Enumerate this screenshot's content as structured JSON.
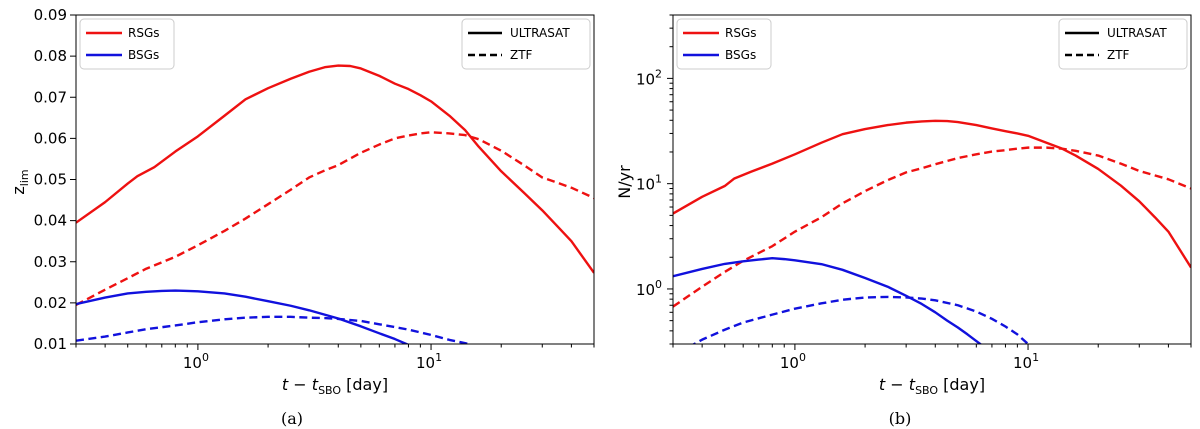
{
  "chart_data": [
    {
      "type": "line",
      "caption": "(a)",
      "xlabel": "t − t_SBO [day]",
      "xlabel_parts": {
        "t": "t",
        "sub_t": "t",
        "sub": "SBO",
        "unit": "[day]"
      },
      "ylabel": "z_lim",
      "ylabel_parts": {
        "base": "z",
        "sub": "lim"
      },
      "xscale": "log",
      "yscale": "linear",
      "xlim": [
        0.3,
        50
      ],
      "ylim": [
        0.01,
        0.09
      ],
      "xticks": [
        {
          "value": 1,
          "label": "10",
          "exp": "0"
        },
        {
          "value": 10,
          "label": "10",
          "exp": "1"
        }
      ],
      "yticks": [
        {
          "value": 0.01,
          "label": "0.01"
        },
        {
          "value": 0.02,
          "label": "0.02"
        },
        {
          "value": 0.03,
          "label": "0.03"
        },
        {
          "value": 0.04,
          "label": "0.04"
        },
        {
          "value": 0.05,
          "label": "0.05"
        },
        {
          "value": 0.06,
          "label": "0.06"
        },
        {
          "value": 0.07,
          "label": "0.07"
        },
        {
          "value": 0.08,
          "label": "0.08"
        },
        {
          "value": 0.09,
          "label": "0.09"
        }
      ],
      "legend_color": {
        "position": "top-left",
        "entries": [
          {
            "label": "RSGs",
            "color": "#ee1111"
          },
          {
            "label": "BSGs",
            "color": "#1111dd"
          }
        ]
      },
      "legend_style": {
        "position": "top-right",
        "entries": [
          {
            "label": "ULTRASAT",
            "dash": "solid"
          },
          {
            "label": "ZTF",
            "dash": "dashed"
          }
        ]
      },
      "series": [
        {
          "name": "RSGs ULTRASAT",
          "color": "#ee1111",
          "dash": "solid",
          "x": [
            0.3,
            0.4,
            0.5,
            0.55,
            0.65,
            0.8,
            1.0,
            1.3,
            1.6,
            2.0,
            2.5,
            3.0,
            3.5,
            4.0,
            4.5,
            5.0,
            6.0,
            7.0,
            8.0,
            9.0,
            10.0,
            12.0,
            14.0,
            16.0,
            20.0,
            25.0,
            30.0,
            35.0,
            40.0,
            50.0
          ],
          "y": [
            0.0395,
            0.0445,
            0.049,
            0.0508,
            0.053,
            0.0568,
            0.0605,
            0.0655,
            0.0695,
            0.0722,
            0.0745,
            0.0762,
            0.0773,
            0.0777,
            0.0776,
            0.077,
            0.0752,
            0.0733,
            0.072,
            0.0705,
            0.069,
            0.0655,
            0.062,
            0.058,
            0.052,
            0.0468,
            0.0425,
            0.0385,
            0.035,
            0.0273
          ]
        },
        {
          "name": "RSGs ZTF",
          "color": "#ee1111",
          "dash": "dashed",
          "x": [
            0.3,
            0.4,
            0.5,
            0.6,
            0.8,
            1.0,
            1.3,
            1.6,
            2.0,
            2.5,
            3.0,
            3.5,
            4.0,
            5.0,
            6.0,
            7.0,
            8.0,
            9.0,
            10.0,
            12.0,
            14.0,
            16.0,
            20.0,
            25.0,
            30.0,
            40.0,
            50.0
          ],
          "y": [
            0.0195,
            0.0232,
            0.026,
            0.0283,
            0.0312,
            0.034,
            0.0375,
            0.0405,
            0.044,
            0.0475,
            0.0505,
            0.0522,
            0.0535,
            0.0565,
            0.0585,
            0.06,
            0.0607,
            0.0612,
            0.0615,
            0.0612,
            0.0608,
            0.0598,
            0.057,
            0.0535,
            0.0505,
            0.048,
            0.0455
          ]
        },
        {
          "name": "BSGs ULTRASAT",
          "color": "#1111dd",
          "dash": "solid",
          "x": [
            0.3,
            0.4,
            0.5,
            0.6,
            0.7,
            0.8,
            0.9,
            1.0,
            1.3,
            1.6,
            2.0,
            2.5,
            3.0,
            4.0,
            5.0,
            6.0,
            7.0,
            8.0
          ],
          "y": [
            0.0197,
            0.0213,
            0.0223,
            0.0227,
            0.0229,
            0.023,
            0.0229,
            0.0228,
            0.0223,
            0.0215,
            0.0204,
            0.0193,
            0.0182,
            0.0162,
            0.0143,
            0.0126,
            0.0112,
            0.0098
          ]
        },
        {
          "name": "BSGs ZTF",
          "color": "#1111dd",
          "dash": "dashed",
          "x": [
            0.3,
            0.4,
            0.5,
            0.6,
            0.8,
            1.0,
            1.3,
            1.6,
            2.0,
            2.5,
            3.0,
            3.5,
            4.0,
            5.0,
            6.0,
            8.0,
            10.0,
            12.0,
            14.0,
            15.0
          ],
          "y": [
            0.0108,
            0.0118,
            0.0128,
            0.0136,
            0.0145,
            0.0153,
            0.016,
            0.0164,
            0.0166,
            0.0166,
            0.0164,
            0.0163,
            0.0161,
            0.0156,
            0.0148,
            0.0135,
            0.0122,
            0.011,
            0.0102,
            0.0098
          ]
        }
      ]
    },
    {
      "type": "line",
      "caption": "(b)",
      "xlabel": "t − t_SBO [day]",
      "xlabel_parts": {
        "t": "t",
        "sub_t": "t",
        "sub": "SBO",
        "unit": "[day]"
      },
      "ylabel": "N/yr",
      "xscale": "log",
      "yscale": "log",
      "xlim": [
        0.3,
        50
      ],
      "ylim": [
        0.3,
        400
      ],
      "xticks": [
        {
          "value": 1,
          "label": "10",
          "exp": "0"
        },
        {
          "value": 10,
          "label": "10",
          "exp": "1"
        }
      ],
      "yticks": [
        {
          "value": 1,
          "label": "10",
          "exp": "0"
        },
        {
          "value": 10,
          "label": "10",
          "exp": "1"
        },
        {
          "value": 100,
          "label": "10",
          "exp": "2"
        }
      ],
      "legend_color": {
        "position": "top-left",
        "entries": [
          {
            "label": "RSGs",
            "color": "#ee1111"
          },
          {
            "label": "BSGs",
            "color": "#1111dd"
          }
        ]
      },
      "legend_style": {
        "position": "top-right",
        "entries": [
          {
            "label": "ULTRASAT",
            "dash": "solid"
          },
          {
            "label": "ZTF",
            "dash": "dashed"
          }
        ]
      },
      "series": [
        {
          "name": "RSGs ULTRASAT",
          "color": "#ee1111",
          "dash": "solid",
          "x": [
            0.3,
            0.4,
            0.5,
            0.55,
            0.65,
            0.8,
            1.0,
            1.3,
            1.6,
            2.0,
            2.5,
            3.0,
            3.5,
            4.0,
            4.5,
            5.0,
            6.0,
            7.0,
            8.0,
            9.0,
            10.0,
            12.0,
            14.0,
            16.0,
            20.0,
            25.0,
            30.0,
            35.0,
            40.0,
            50.0
          ],
          "y": [
            5.2,
            7.5,
            9.5,
            11.2,
            13.0,
            15.5,
            19.0,
            24.5,
            29.5,
            33.0,
            36.0,
            38.0,
            39.0,
            39.5,
            39.3,
            38.5,
            36.0,
            33.5,
            31.5,
            30.0,
            28.5,
            24.5,
            21.5,
            18.5,
            13.8,
            9.6,
            6.8,
            4.8,
            3.5,
            1.6
          ]
        },
        {
          "name": "RSGs ZTF",
          "color": "#ee1111",
          "dash": "dashed",
          "x": [
            0.3,
            0.4,
            0.5,
            0.6,
            0.8,
            1.0,
            1.3,
            1.6,
            2.0,
            2.5,
            3.0,
            3.5,
            4.0,
            5.0,
            6.0,
            7.0,
            8.0,
            9.0,
            10.0,
            12.0,
            14.0,
            16.0,
            20.0,
            25.0,
            30.0,
            40.0,
            50.0
          ],
          "y": [
            0.68,
            1.05,
            1.45,
            1.85,
            2.55,
            3.5,
            4.8,
            6.5,
            8.5,
            10.8,
            12.8,
            14.0,
            15.3,
            17.5,
            19.0,
            20.2,
            20.8,
            21.5,
            22.0,
            22.0,
            21.5,
            20.5,
            18.5,
            15.5,
            13.2,
            11.0,
            9.0
          ]
        },
        {
          "name": "BSGs ULTRASAT",
          "color": "#1111dd",
          "dash": "solid",
          "x": [
            0.3,
            0.4,
            0.5,
            0.6,
            0.7,
            0.8,
            0.9,
            1.0,
            1.3,
            1.6,
            2.0,
            2.5,
            3.0,
            3.5,
            4.0,
            4.5,
            5.0,
            5.5,
            6.0,
            6.5
          ],
          "y": [
            1.32,
            1.55,
            1.73,
            1.83,
            1.9,
            1.96,
            1.92,
            1.87,
            1.72,
            1.52,
            1.27,
            1.05,
            0.86,
            0.72,
            0.6,
            0.5,
            0.43,
            0.37,
            0.32,
            0.28
          ]
        },
        {
          "name": "BSGs ZTF",
          "color": "#1111dd",
          "dash": "dashed",
          "x": [
            0.35,
            0.4,
            0.5,
            0.6,
            0.8,
            1.0,
            1.3,
            1.6,
            2.0,
            2.5,
            3.0,
            3.5,
            4.0,
            5.0,
            6.0,
            7.0,
            8.0,
            9.0,
            10.0
          ],
          "y": [
            0.28,
            0.33,
            0.41,
            0.48,
            0.57,
            0.65,
            0.73,
            0.79,
            0.83,
            0.84,
            0.83,
            0.81,
            0.78,
            0.7,
            0.61,
            0.52,
            0.44,
            0.37,
            0.3
          ]
        }
      ]
    }
  ]
}
